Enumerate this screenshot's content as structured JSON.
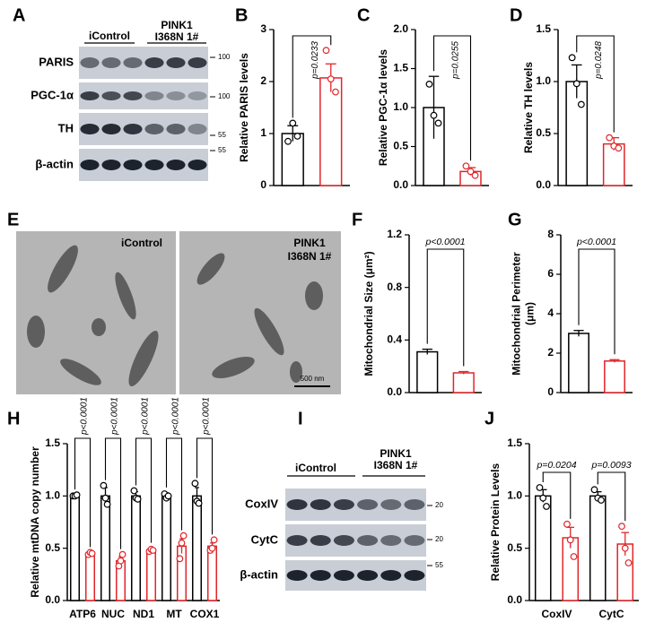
{
  "panel_letters": [
    "A",
    "B",
    "C",
    "D",
    "E",
    "F",
    "G",
    "H",
    "I",
    "J"
  ],
  "blot_a": {
    "groups": [
      [
        "iControl"
      ],
      [
        "PINK1",
        "I368N 1#"
      ]
    ],
    "rows": [
      "PARIS",
      "PGC-1α",
      "TH",
      "β-actin"
    ],
    "markers": [
      100,
      100,
      55,
      55
    ]
  },
  "em": {
    "labels": [
      [
        "iControl"
      ],
      [
        "PINK1",
        "I368N 1#"
      ]
    ],
    "scale": "500 nm"
  },
  "blot_i": {
    "groups": [
      [
        "iControl"
      ],
      [
        "PINK1",
        "I368N 1#"
      ]
    ],
    "rows": [
      "CoxIV",
      "CytC",
      "β-actin"
    ],
    "markers": [
      20,
      20,
      55
    ]
  },
  "chart_data": [
    {
      "type": "bar",
      "ylabel": "Relative PARIS levels",
      "ylim": [
        0,
        3
      ],
      "yticks": [
        0,
        1,
        2,
        3
      ],
      "categories": [
        null
      ],
      "series": [
        {
          "color": "#000000",
          "values": [
            1.0
          ],
          "errors": [
            0.15
          ],
          "points": [
            [
              0.85,
              1.2,
              0.95
            ]
          ]
        },
        {
          "color": "#e0262a",
          "values": [
            2.07
          ],
          "errors": [
            0.27
          ],
          "points": [
            [
              2.6,
              2.05,
              1.8
            ]
          ]
        }
      ],
      "annotations": [
        "p=0.0233"
      ]
    },
    {
      "type": "bar",
      "ylabel": "Relative PGC-1α levels",
      "ylim": [
        0,
        2
      ],
      "yticks": [
        {
          "value": 0,
          "label": "0.0"
        },
        0.5,
        {
          "value": 1,
          "label": "1.0"
        },
        1.5,
        {
          "value": 2,
          "label": "2.0"
        }
      ],
      "categories": [
        null
      ],
      "series": [
        {
          "color": "#000000",
          "values": [
            1.0
          ],
          "errors": [
            0.4
          ],
          "points": [
            [
              1.3,
              0.9,
              0.8
            ]
          ]
        },
        {
          "color": "#e0262a",
          "values": [
            0.18
          ],
          "errors": [
            0.05
          ],
          "points": [
            [
              0.25,
              0.18,
              0.13
            ]
          ]
        }
      ],
      "annotations": [
        "p=0.0255"
      ]
    },
    {
      "type": "bar",
      "ylabel": "Relative TH levels",
      "ylim": [
        0,
        1.5
      ],
      "yticks": [
        {
          "value": 0,
          "label": "0.0"
        },
        0.5,
        {
          "value": 1,
          "label": "1.0"
        },
        1.5
      ],
      "categories": [
        null
      ],
      "series": [
        {
          "color": "#000000",
          "values": [
            1.0
          ],
          "errors": [
            0.16
          ],
          "points": [
            [
              1.23,
              0.98,
              0.78
            ]
          ]
        },
        {
          "color": "#e0262a",
          "values": [
            0.4
          ],
          "errors": [
            0.06
          ],
          "points": [
            [
              0.46,
              0.38,
              0.36
            ]
          ]
        }
      ],
      "annotations": [
        "p=0.0248"
      ]
    },
    {
      "type": "bar",
      "ylabel": "Mitochondrial Size (μm²)",
      "ylim": [
        0,
        1.2
      ],
      "yticks": [
        {
          "value": 0,
          "label": "0.0"
        },
        0.4,
        0.8,
        1.2
      ],
      "categories": [
        null
      ],
      "series": [
        {
          "color": "#000000",
          "values": [
            0.31
          ],
          "errors": [
            0.02
          ]
        },
        {
          "color": "#e0262a",
          "values": [
            0.15
          ],
          "errors": [
            0.01
          ]
        }
      ],
      "annotations": [
        "p<0.0001"
      ]
    },
    {
      "type": "bar",
      "ylabel": [
        "Mitochondrial Perimeter",
        "(μm)"
      ],
      "ylim": [
        0,
        8
      ],
      "yticks": [
        0,
        2,
        4,
        6,
        8
      ],
      "categories": [
        null
      ],
      "series": [
        {
          "color": "#000000",
          "values": [
            3.0
          ],
          "errors": [
            0.15
          ]
        },
        {
          "color": "#e0262a",
          "values": [
            1.6
          ],
          "errors": [
            0.07
          ]
        }
      ],
      "annotations": [
        "p<0.0001"
      ]
    },
    {
      "type": "bar",
      "ylabel": "Relative mtDNA copy number",
      "ylim": [
        0,
        1.5
      ],
      "yticks": [
        {
          "value": 0,
          "label": "0.0"
        },
        0.5,
        {
          "value": 1,
          "label": "1.0"
        },
        1.5
      ],
      "categories": [
        "ATP6",
        "NUC",
        "ND1",
        "MT",
        "COX1"
      ],
      "series": [
        {
          "color": "#000000",
          "values": [
            1.0,
            1.0,
            1.0,
            1.0,
            1.0
          ],
          "errors": [
            0.01,
            0.08,
            0.04,
            0.03,
            0.08
          ],
          "points": [
            [
              1.0,
              1.0,
              1.01
            ],
            [
              1.1,
              0.98,
              0.92
            ],
            [
              1.05,
              0.98,
              0.97
            ],
            [
              1.02,
              0.98,
              1.0
            ],
            [
              1.12,
              0.95,
              0.93
            ]
          ]
        },
        {
          "color": "#e0262a",
          "values": [
            0.45,
            0.38,
            0.48,
            0.52,
            0.52
          ],
          "errors": [
            0.01,
            0.04,
            0.02,
            0.07,
            0.03
          ],
          "points": [
            [
              0.44,
              0.46,
              0.45
            ],
            [
              0.33,
              0.38,
              0.44
            ],
            [
              0.47,
              0.49,
              0.48
            ],
            [
              0.4,
              0.55,
              0.62
            ],
            [
              0.48,
              0.5,
              0.58
            ]
          ]
        }
      ],
      "annotations": [
        "p<0.0001",
        "p<0.0001",
        "p<0.0001",
        "p<0.0001",
        "p<0.0001"
      ]
    },
    {
      "type": "bar",
      "ylabel": "Relative Protein Levels",
      "ylim": [
        0,
        1.5
      ],
      "yticks": [
        {
          "value": 0,
          "label": "0.0"
        },
        0.5,
        {
          "value": 1,
          "label": "1.0"
        },
        1.5
      ],
      "categories": [
        "CoxIV",
        "CytC"
      ],
      "series": [
        {
          "color": "#000000",
          "values": [
            1.0,
            1.0
          ],
          "errors": [
            0.06,
            0.04
          ],
          "points": [
            [
              1.08,
              0.98,
              0.9
            ],
            [
              1.06,
              0.98,
              0.96
            ]
          ]
        },
        {
          "color": "#e0262a",
          "values": [
            0.6,
            0.54
          ],
          "errors": [
            0.1,
            0.11
          ],
          "points": [
            [
              0.73,
              0.58,
              0.42
            ],
            [
              0.71,
              0.5,
              0.36
            ]
          ]
        }
      ],
      "annotations": [
        "p=0.0204",
        "p=0.0093"
      ]
    }
  ]
}
